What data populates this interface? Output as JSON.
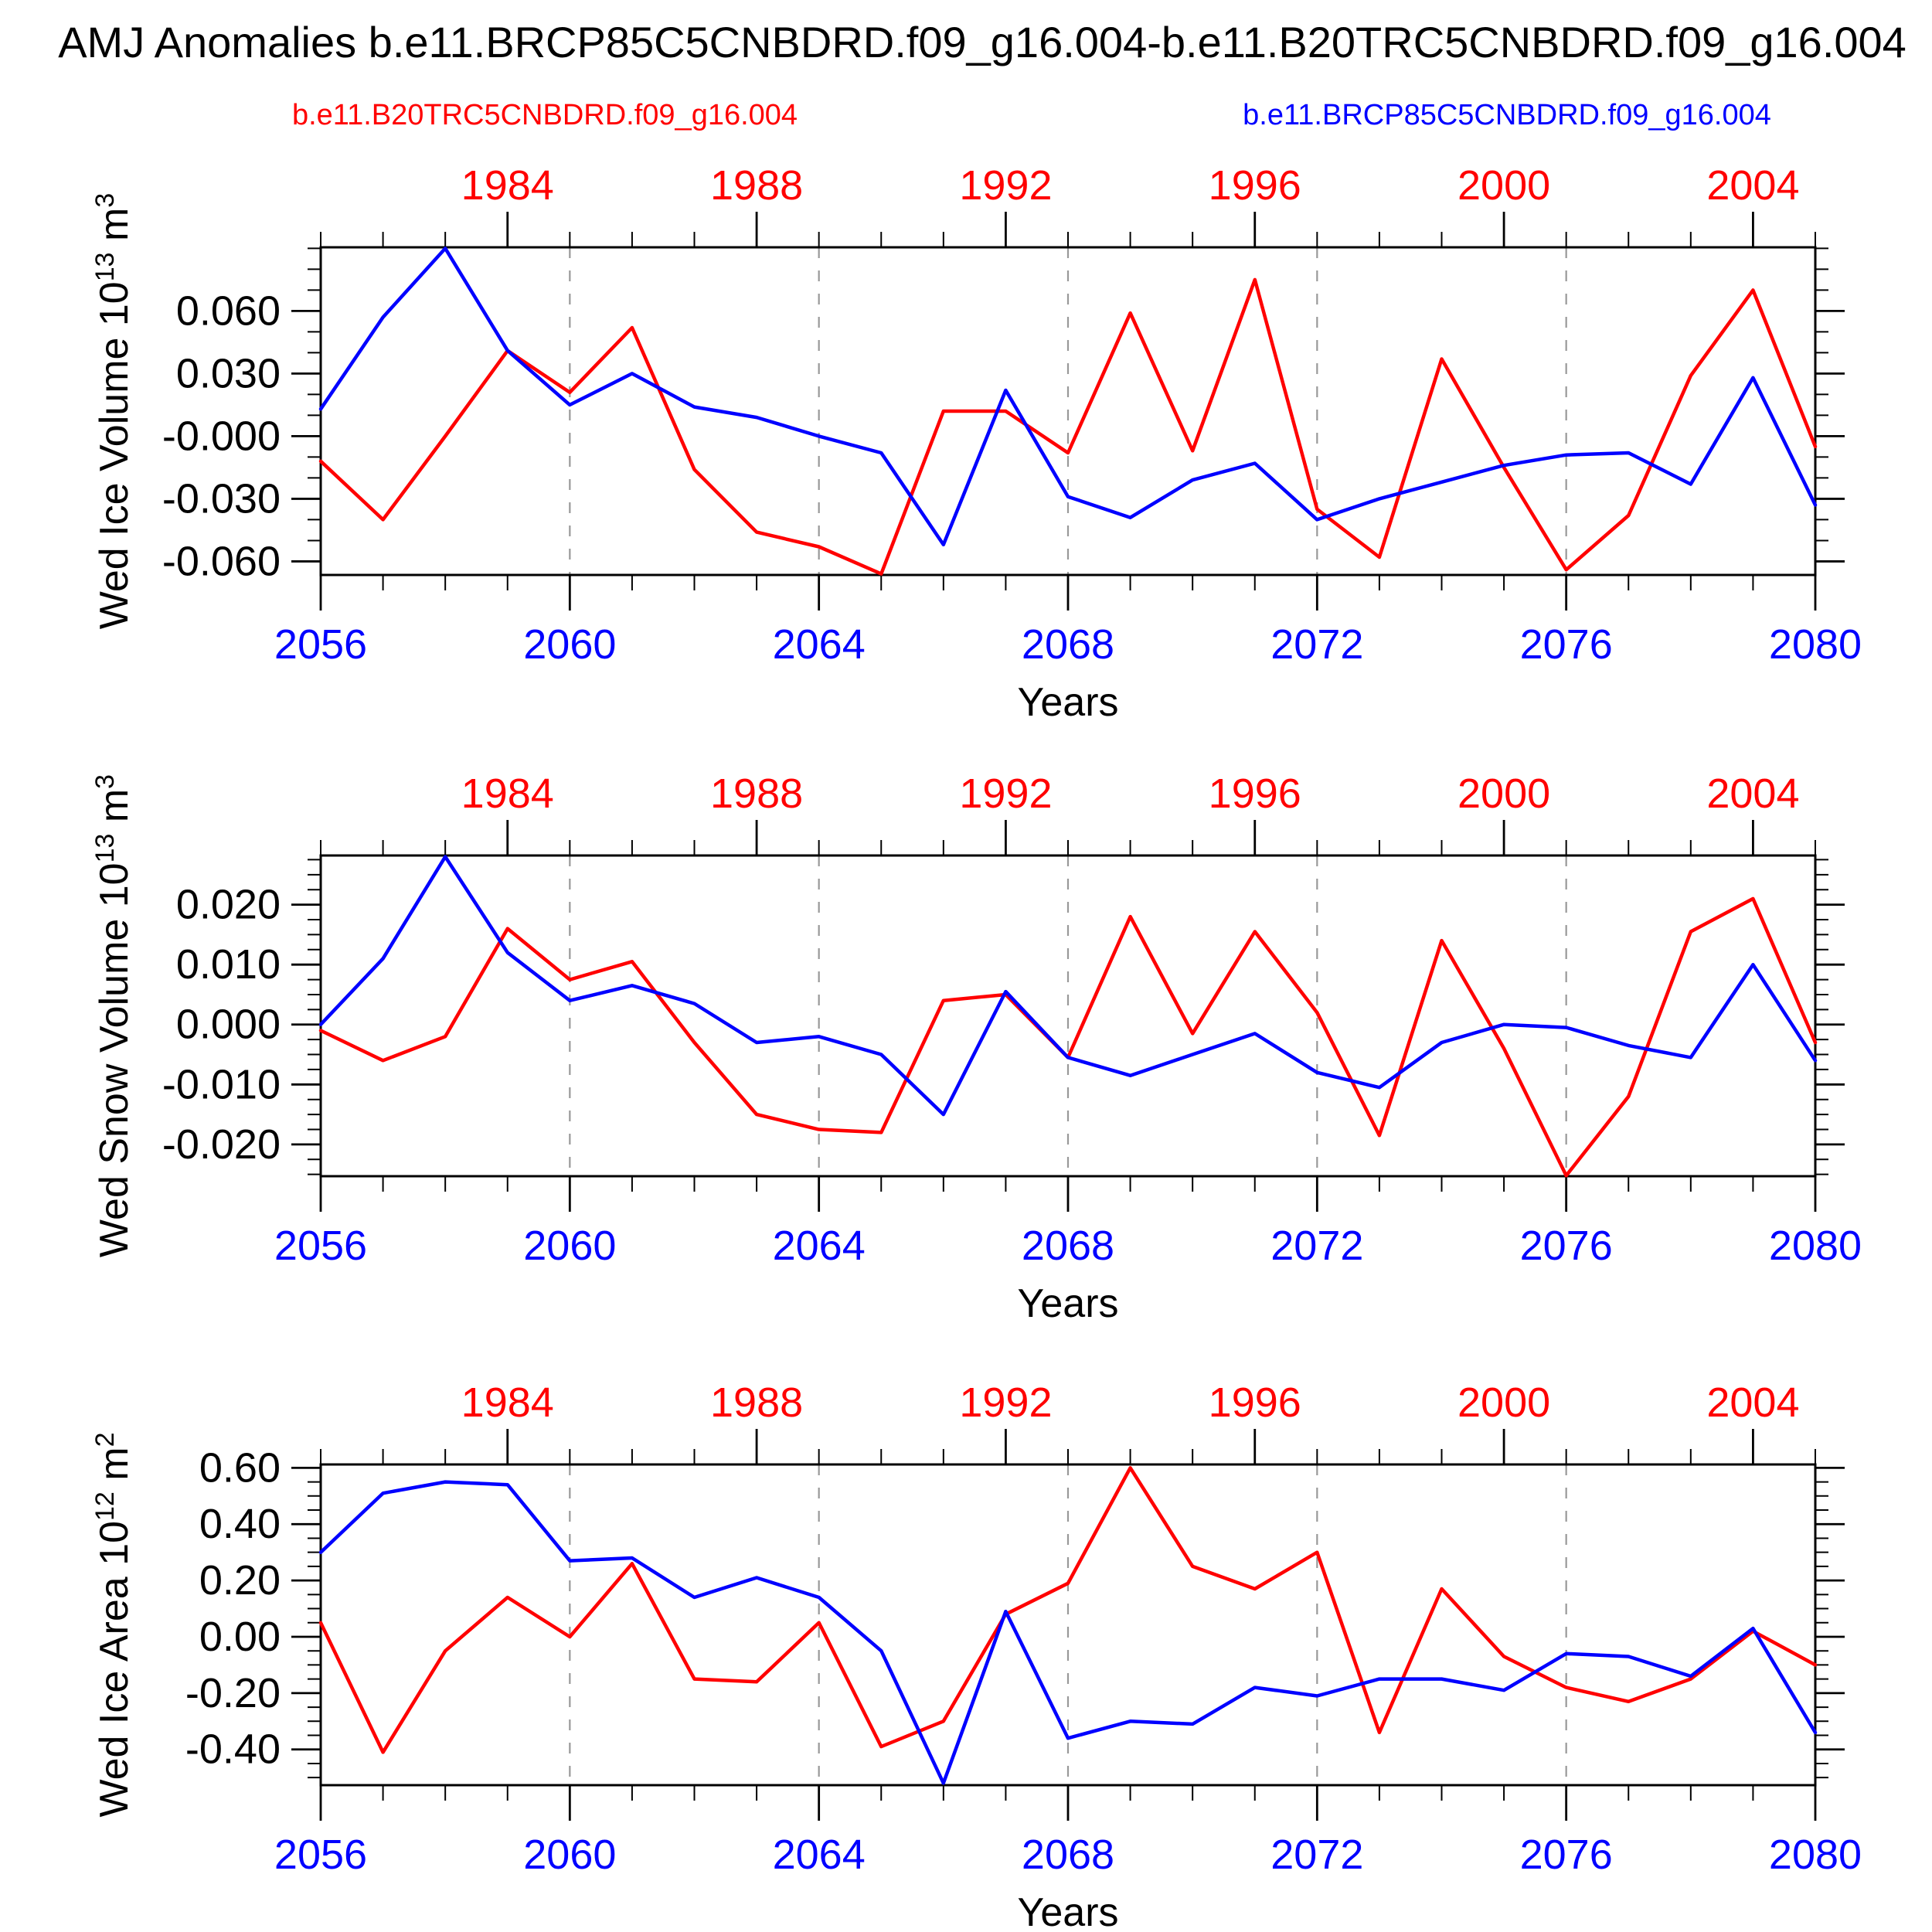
{
  "title": "AMJ Anomalies b.e11.BRCP85C5CNBDRD.f09_g16.004-b.e11.B20TRC5CNBDRD.f09_g16.004",
  "legend": {
    "red": {
      "label": "b.e11.B20TRC5CNBDRD.f09_g16.004",
      "color": "#ff0000"
    },
    "blue": {
      "label": "b.e11.BRCP85C5CNBDRD.f09_g16.004",
      "color": "#0000ff"
    }
  },
  "chart_data": {
    "type": "line",
    "x_years_rcp85": [
      2056,
      2057,
      2058,
      2059,
      2060,
      2061,
      2062,
      2063,
      2064,
      2065,
      2066,
      2067,
      2068,
      2069,
      2070,
      2071,
      2072,
      2073,
      2074,
      2075,
      2076,
      2077,
      2078,
      2079,
      2080
    ],
    "x_years_20thc": [
      1981,
      1982,
      1983,
      1984,
      1985,
      1986,
      1987,
      1988,
      1989,
      1990,
      1991,
      1992,
      1993,
      1994,
      1995,
      1996,
      1997,
      1998,
      1999,
      2000,
      2001,
      2002,
      2003,
      2004,
      2005
    ],
    "top_axis": {
      "color": "#ff0000",
      "labels": [
        "1984",
        "1988",
        "1992",
        "1996",
        "2000",
        "2004"
      ],
      "label_indices": [
        3,
        7,
        11,
        15,
        19,
        23
      ]
    },
    "bottom_axis": {
      "color": "#0000ff",
      "labels": [
        "2056",
        "2060",
        "2064",
        "2068",
        "2072",
        "2076",
        "2080"
      ],
      "label_indices": [
        0,
        4,
        8,
        12,
        16,
        20,
        24
      ],
      "xlabel": "Years"
    },
    "grid_line_indices": [
      4,
      8,
      12,
      16,
      20
    ],
    "grid_color": "#999999",
    "frame_color": "#000000",
    "panels": [
      {
        "name": "wed-ice-volume",
        "ylabel": {
          "prefix": "Wed Ice Volume 10",
          "exponent": "13",
          "unit": " m",
          "unit_exponent": "3"
        },
        "ylim": [
          -0.0665,
          0.0905
        ],
        "ytick_values": [
          0.06,
          0.03,
          0.0,
          -0.03,
          -0.06
        ],
        "ytick_labels": [
          "0.060",
          "0.030",
          "-0.000",
          "-0.030",
          "-0.060"
        ],
        "minor_step": 0.01,
        "series": [
          {
            "name": "b.e11.B20TRC5CNBDRD.f09_g16.004",
            "color": "#ff0000",
            "values": [
              -0.012,
              -0.04,
              0.0,
              0.041,
              0.021,
              0.052,
              -0.016,
              -0.046,
              -0.053,
              -0.066,
              0.012,
              0.012,
              -0.008,
              0.059,
              -0.007,
              0.075,
              -0.035,
              -0.058,
              0.037,
              -0.015,
              -0.064,
              -0.038,
              0.029,
              0.07,
              -0.005
            ]
          },
          {
            "name": "b.e11.BRCP85C5CNBDRD.f09_g16.004",
            "color": "#0000ff",
            "values": [
              0.013,
              0.057,
              0.09,
              0.041,
              0.015,
              0.03,
              0.014,
              0.009,
              0.0,
              -0.008,
              -0.052,
              0.022,
              -0.029,
              -0.039,
              -0.021,
              -0.013,
              -0.04,
              -0.03,
              -0.022,
              -0.014,
              -0.009,
              -0.008,
              -0.023,
              0.028,
              -0.033
            ]
          }
        ]
      },
      {
        "name": "wed-snow-volume",
        "ylabel": {
          "prefix": "Wed Snow Volume 10",
          "exponent": "13",
          "unit": " m",
          "unit_exponent": "3"
        },
        "ylim": [
          -0.0253,
          0.0282
        ],
        "ytick_values": [
          0.02,
          0.01,
          0.0,
          -0.01,
          -0.02
        ],
        "ytick_labels": [
          "0.020",
          "0.010",
          "0.000",
          "-0.010",
          "-0.020"
        ],
        "minor_step": 0.0025,
        "series": [
          {
            "name": "b.e11.B20TRC5CNBDRD.f09_g16.004",
            "color": "#ff0000",
            "values": [
              -0.001,
              -0.006,
              -0.002,
              0.016,
              0.0075,
              0.0105,
              -0.003,
              -0.015,
              -0.0175,
              -0.018,
              0.004,
              0.005,
              -0.0055,
              0.018,
              -0.0015,
              0.0155,
              0.002,
              -0.0185,
              0.014,
              -0.004,
              -0.0252,
              -0.012,
              0.0155,
              0.021,
              -0.003
            ]
          },
          {
            "name": "b.e11.BRCP85C5CNBDRD.f09_g16.004",
            "color": "#0000ff",
            "values": [
              0.0,
              0.011,
              0.028,
              0.012,
              0.004,
              0.0065,
              0.0035,
              -0.003,
              -0.002,
              -0.005,
              -0.015,
              0.0055,
              -0.0055,
              -0.0085,
              -0.005,
              -0.0015,
              -0.008,
              -0.0105,
              -0.003,
              0.0,
              -0.0005,
              -0.0035,
              -0.0055,
              0.01,
              -0.006
            ]
          }
        ]
      },
      {
        "name": "wed-ice-area",
        "ylabel": {
          "prefix": "Wed Ice Area 10",
          "exponent": "12",
          "unit": " m",
          "unit_exponent": "2"
        },
        "ylim": [
          -0.527,
          0.612
        ],
        "ytick_values": [
          0.6,
          0.4,
          0.2,
          0.0,
          -0.2,
          -0.4
        ],
        "ytick_labels": [
          "0.60",
          "0.40",
          "0.20",
          "0.00",
          "-0.20",
          "-0.40"
        ],
        "minor_step": 0.05,
        "series": [
          {
            "name": "b.e11.B20TRC5CNBDRD.f09_g16.004",
            "color": "#ff0000",
            "values": [
              0.05,
              -0.41,
              -0.05,
              0.14,
              0.0,
              0.26,
              -0.15,
              -0.16,
              0.05,
              -0.39,
              -0.3,
              0.08,
              0.19,
              0.6,
              0.25,
              0.17,
              0.3,
              -0.34,
              0.17,
              -0.07,
              -0.18,
              -0.23,
              -0.15,
              0.02,
              -0.1
            ]
          },
          {
            "name": "b.e11.BRCP85C5CNBDRD.f09_g16.004",
            "color": "#0000ff",
            "values": [
              0.3,
              0.51,
              0.55,
              0.54,
              0.27,
              0.28,
              0.14,
              0.21,
              0.14,
              -0.05,
              -0.52,
              0.09,
              -0.36,
              -0.3,
              -0.31,
              -0.18,
              -0.21,
              -0.15,
              -0.15,
              -0.19,
              -0.06,
              -0.07,
              -0.14,
              0.03,
              -0.34
            ]
          }
        ]
      }
    ]
  }
}
